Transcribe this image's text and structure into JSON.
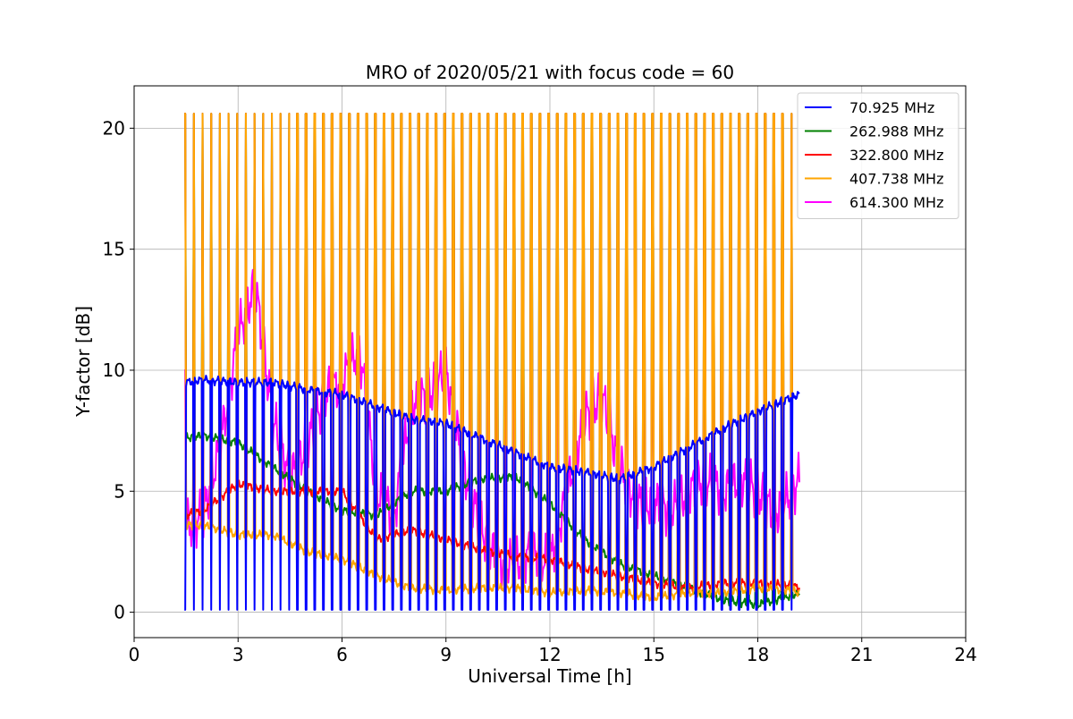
{
  "chart_data": {
    "type": "line",
    "title": "MRO of 2020/05/21 with focus code = 60",
    "xlabel": "Universal Time [h]",
    "ylabel": "Y-factor [dB]",
    "xlim": [
      0,
      24
    ],
    "ylim": [
      -1.05,
      21.75
    ],
    "xticks": [
      0,
      3,
      6,
      9,
      12,
      15,
      18,
      21,
      24
    ],
    "yticks": [
      0,
      5,
      10,
      15,
      20
    ],
    "grid": true,
    "legend_position": "top-right",
    "sampling_note": "Curves are digitized baselines; every series also shows periodic calibration spikes (~every 0.25 h from 1.45 h to 19.2 h) toward the listed peak level.",
    "spikes": {
      "start": 1.45,
      "end": 19.2,
      "period": 0.25
    },
    "series": [
      {
        "name": " 70.925 MHz",
        "color": "#0000ff",
        "spike_to": 0.1,
        "x": [
          1.45,
          2,
          3,
          4,
          5,
          6,
          7,
          8,
          9,
          10,
          11,
          12,
          13,
          14,
          15,
          16,
          17,
          18,
          19,
          19.2
        ],
        "y": [
          9.5,
          9.6,
          9.5,
          9.5,
          9.2,
          9.0,
          8.5,
          8.0,
          7.8,
          7.2,
          6.6,
          6.0,
          5.8,
          5.5,
          6.0,
          6.8,
          7.6,
          8.3,
          8.9,
          9.0
        ]
      },
      {
        "name": "262.988 MHz",
        "color": "#008000",
        "spike_to": 20.6,
        "x": [
          1.45,
          2,
          3,
          4,
          5,
          6,
          7,
          8,
          9,
          10,
          11,
          12,
          13,
          14,
          15,
          16,
          17,
          18,
          19,
          19.2
        ],
        "y": [
          7.2,
          7.3,
          7.0,
          6.0,
          5.0,
          4.2,
          4.0,
          5.0,
          5.0,
          5.5,
          5.6,
          4.5,
          3.0,
          2.0,
          1.5,
          1.0,
          0.5,
          0.3,
          0.7,
          0.8
        ]
      },
      {
        "name": "322.800 MHz",
        "color": "#ff0000",
        "spike_to": 20.6,
        "x": [
          1.45,
          2,
          3,
          4,
          5,
          6,
          7,
          8,
          9,
          10,
          11,
          12,
          13,
          14,
          15,
          16,
          17,
          18,
          19,
          19.2
        ],
        "y": [
          4.0,
          4.2,
          5.3,
          5.0,
          5.0,
          5.0,
          3.0,
          3.4,
          3.0,
          2.6,
          2.3,
          2.2,
          1.8,
          1.5,
          1.2,
          1.0,
          1.2,
          1.2,
          1.1,
          1.0
        ]
      },
      {
        "name": "407.738 MHz",
        "color": "#ffa500",
        "spike_to": 20.6,
        "x": [
          1.45,
          2,
          3,
          4,
          5,
          6,
          7,
          8,
          9,
          10,
          11,
          12,
          13,
          14,
          15,
          16,
          17,
          18,
          19,
          19.2
        ],
        "y": [
          3.6,
          3.6,
          3.2,
          3.2,
          2.5,
          2.2,
          1.5,
          1.0,
          0.9,
          1.0,
          1.0,
          0.8,
          0.9,
          0.8,
          0.6,
          0.8,
          0.8,
          1.0,
          0.9,
          0.8
        ]
      },
      {
        "name": "614.300 MHz",
        "color": "#ff00ff",
        "spike_to": 10.0,
        "x": [
          1.45,
          2,
          2.5,
          3,
          3.5,
          4,
          4.5,
          5,
          5.5,
          6,
          6.5,
          7,
          7.5,
          8,
          8.5,
          9,
          9.5,
          10,
          10.5,
          11,
          11.5,
          12,
          12.5,
          13,
          13.5,
          14,
          14.5,
          15,
          15.5,
          16,
          16.5,
          17,
          17.5,
          18,
          18.5,
          19,
          19.2
        ],
        "y": [
          3.5,
          4.0,
          7.0,
          11.5,
          13.5,
          8.0,
          5.5,
          7.0,
          9.0,
          9.5,
          11.0,
          5.0,
          4.0,
          8.5,
          9.0,
          10.0,
          6.0,
          3.5,
          2.0,
          2.0,
          2.5,
          2.0,
          5.0,
          8.0,
          9.0,
          6.0,
          4.5,
          4.5,
          4.2,
          5.0,
          5.5,
          5.0,
          5.5,
          5.0,
          4.0,
          5.0,
          5.5
        ]
      }
    ]
  }
}
